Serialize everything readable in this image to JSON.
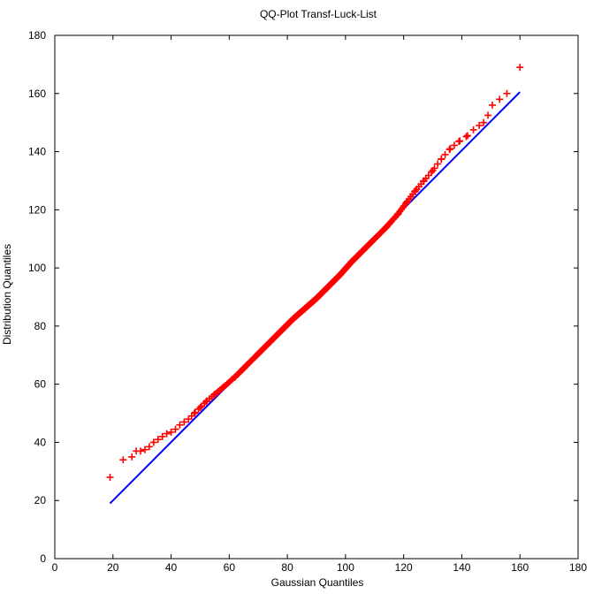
{
  "chart_data": {
    "type": "scatter",
    "title": "QQ-Plot Transf-Luck-List",
    "xlabel": "Gaussian Quantiles",
    "ylabel": "Distribution Quantiles",
    "xlim": [
      0,
      180
    ],
    "ylim": [
      0,
      180
    ],
    "xticks": [
      0,
      20,
      40,
      60,
      80,
      100,
      120,
      140,
      160,
      180
    ],
    "yticks": [
      0,
      20,
      40,
      60,
      80,
      100,
      120,
      140,
      160,
      180
    ],
    "grid": false,
    "colors": {
      "points": "#ff0000",
      "reference_line": "#0000ff"
    },
    "reference_line": {
      "x": [
        19,
        160
      ],
      "y": [
        19,
        160.5
      ]
    },
    "anchors": {
      "x": [
        19,
        23.5,
        26.5,
        28,
        29.5,
        31,
        32.5,
        34,
        35.5,
        37,
        38.5,
        40,
        41.5,
        43,
        44.5,
        46,
        48,
        50,
        52,
        55,
        58,
        62,
        66,
        70,
        74,
        78,
        82,
        86,
        90,
        94,
        98,
        102,
        106,
        110,
        114,
        118,
        121,
        124,
        127,
        130,
        133,
        136,
        139,
        142,
        144,
        146,
        147.5,
        149,
        150.5,
        153,
        155.5,
        160
      ],
      "y": [
        28,
        34,
        35,
        37,
        37,
        37.5,
        38.5,
        40,
        41,
        42,
        43,
        43.5,
        44.5,
        46,
        47,
        48,
        50,
        52,
        54,
        56.5,
        59,
        62.5,
        66.5,
        70.5,
        74.5,
        78.5,
        82.5,
        86,
        89.5,
        93.5,
        97.5,
        102,
        106,
        110,
        114,
        118.5,
        122.5,
        126.5,
        130,
        133.5,
        137.5,
        141,
        143.5,
        145.5,
        147.5,
        149,
        150,
        152.5,
        156,
        158,
        160,
        169
      ]
    },
    "sampled_points": 300
  }
}
